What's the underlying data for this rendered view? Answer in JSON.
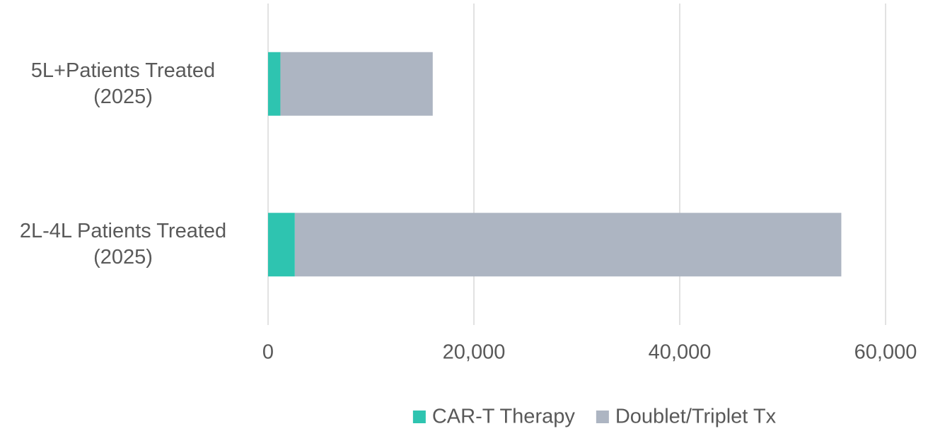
{
  "chart_data": {
    "type": "stacked-bar-horizontal",
    "categories": [
      "5L+Patients Treated (2025)",
      "2L-4L Patients Treated (2025)"
    ],
    "series": [
      {
        "name": "CAR-T Therapy",
        "color": "#2ec4b0",
        "values": [
          1200,
          2600
        ]
      },
      {
        "name": "Doublet/Triplet Tx",
        "color": "#adb5c2",
        "values": [
          14800,
          53100
        ]
      }
    ],
    "xlim": [
      0,
      60000
    ],
    "xticks": [
      0,
      {
        "value": 20000,
        "label": "20,000"
      },
      {
        "value": 40000,
        "label": "40,000"
      },
      {
        "value": 60000,
        "label": "60,000"
      }
    ],
    "grid": true,
    "legend": "bottom"
  }
}
